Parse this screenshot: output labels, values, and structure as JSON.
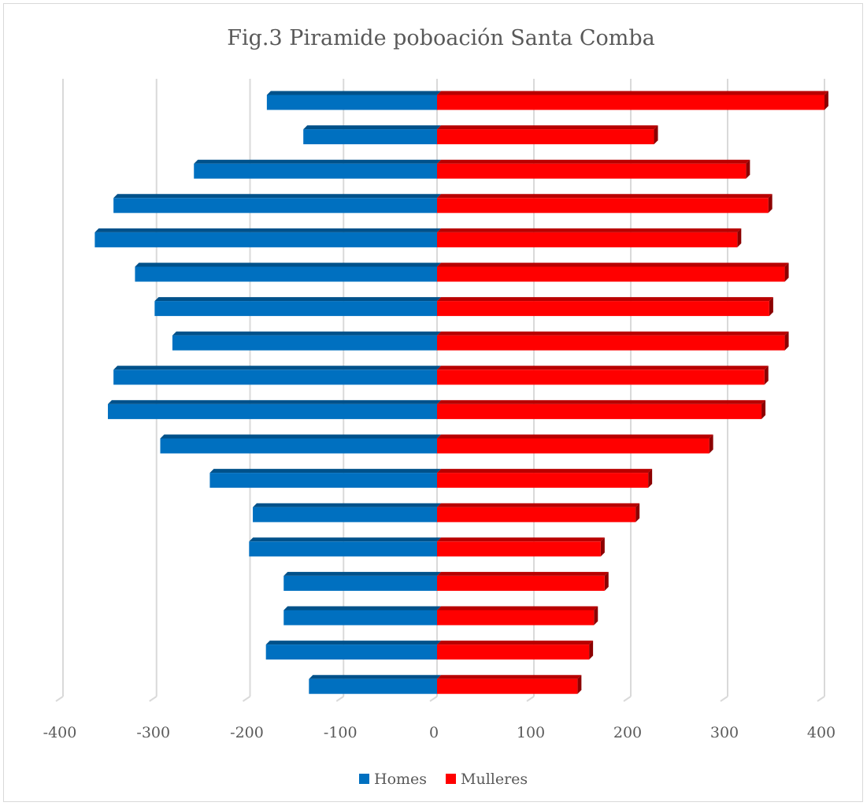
{
  "chart_data": {
    "type": "bar",
    "orientation": "horizontal",
    "title": "Fig.3 Piramide poboación Santa Comba",
    "xlim": [
      -400,
      400
    ],
    "x_ticks": [
      "-400",
      "-300",
      "-200",
      "-100",
      "0",
      "100",
      "200",
      "300",
      "400"
    ],
    "grid": true,
    "legend_position": "bottom",
    "series": [
      {
        "name": "Homes",
        "color": "#0070c0",
        "values": [
          -182,
          -143,
          -260,
          -346,
          -366,
          -323,
          -302,
          -283,
          -346,
          -352,
          -296,
          -243,
          -197,
          -201,
          -164,
          -164,
          -183,
          -137
        ]
      },
      {
        "name": "Mulleres",
        "color": "#ff0000",
        "values": [
          400,
          224,
          319,
          342,
          310,
          359,
          343,
          359,
          338,
          335,
          281,
          218,
          205,
          169,
          173,
          162,
          157,
          145
        ]
      }
    ]
  }
}
